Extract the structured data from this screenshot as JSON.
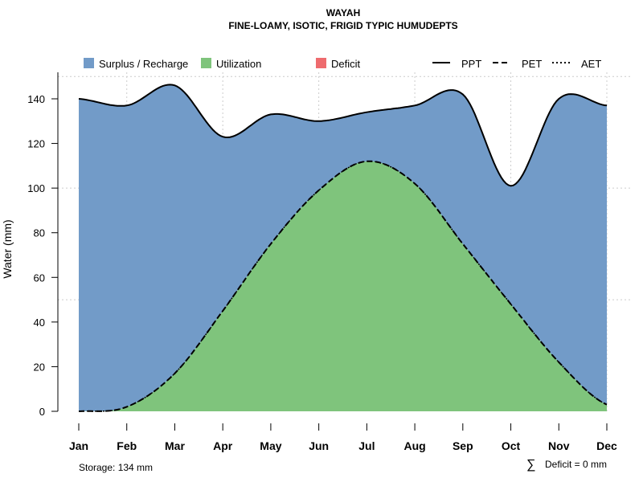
{
  "chart_data": {
    "type": "area",
    "title": "WAYAH",
    "subtitle": "FINE-LOAMY, ISOTIC, FRIGID TYPIC HUMUDEPTS",
    "xlabel": "",
    "ylabel": "Water (mm)",
    "ylim": [
      0,
      152
    ],
    "yticks": [
      0,
      20,
      40,
      60,
      80,
      100,
      120,
      140
    ],
    "categories": [
      "Jan",
      "Feb",
      "Mar",
      "Apr",
      "May",
      "Jun",
      "Jul",
      "Aug",
      "Sep",
      "Oct",
      "Nov",
      "Dec"
    ],
    "series": [
      {
        "name": "PPT",
        "style": "solid",
        "values": [
          140,
          137,
          146,
          123,
          133,
          130,
          134,
          137,
          142,
          101,
          140,
          137
        ]
      },
      {
        "name": "PET",
        "style": "dashed",
        "values": [
          0,
          2,
          17,
          45,
          75,
          99,
          112,
          102,
          75,
          48,
          22,
          3
        ]
      },
      {
        "name": "AET",
        "style": "dotted",
        "values": [
          0,
          2,
          17,
          45,
          75,
          99,
          112,
          102,
          75,
          48,
          22,
          3
        ]
      }
    ],
    "areas": [
      {
        "name": "Surplus / Recharge",
        "color": "#729BC8"
      },
      {
        "name": "Utilization",
        "color": "#7FC47C"
      },
      {
        "name": "Deficit",
        "color": "#EE6B6E"
      }
    ],
    "grid": true,
    "legend_position": "top",
    "annotations": {
      "storage": "Storage: 134 mm",
      "deficit": "Deficit = 0 mm",
      "sigma": "∑"
    }
  }
}
